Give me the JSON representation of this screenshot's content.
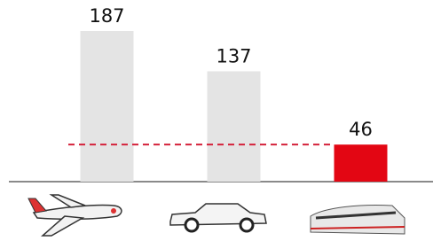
{
  "chart_data": {
    "type": "bar",
    "categories": [
      null,
      null,
      null
    ],
    "values": [
      187,
      137,
      46
    ],
    "colors": [
      "#e4e4e4",
      "#e4e4e4",
      "#e30613"
    ],
    "reference_color": "#d4213a"
  }
}
